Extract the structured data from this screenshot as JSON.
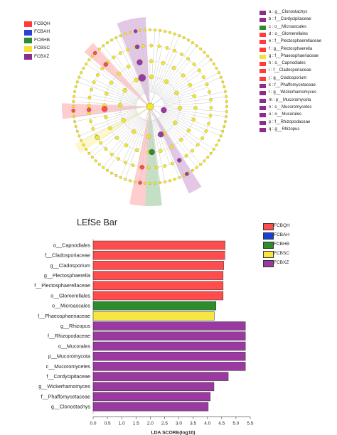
{
  "cladogram": {
    "groups": [
      {
        "name": "FCBQH",
        "color": "#ff3b3b"
      },
      {
        "name": "FCBAH",
        "color": "#2a3fd6"
      },
      {
        "name": "FCBHB",
        "color": "#2e8b2e"
      },
      {
        "name": "FCBSC",
        "color": "#f7e03a"
      },
      {
        "name": "FCBXZ",
        "color": "#8e2c8e"
      }
    ],
    "legend": [
      {
        "text": "a : g__Clonostachys",
        "color": "#8e2c8e"
      },
      {
        "text": "b : f__Cordycipitaceae",
        "color": "#8e2c8e"
      },
      {
        "text": "c : o__Microascales",
        "color": "#2e8b2e"
      },
      {
        "text": "d : o__Glomerellales",
        "color": "#ff3b3b"
      },
      {
        "text": "e : f__Plectosphaerellaceae",
        "color": "#ff3b3b"
      },
      {
        "text": "f : g__Plectosphaerella",
        "color": "#ff3b3b"
      },
      {
        "text": "g : f__Phaeosphaeriaceae",
        "color": "#f7e03a"
      },
      {
        "text": "h : o__Capnodiales",
        "color": "#ff3b3b"
      },
      {
        "text": "i : f__Cladosporiaceae",
        "color": "#ff3b3b"
      },
      {
        "text": "j : g__Cladosporium",
        "color": "#ff3b3b"
      },
      {
        "text": "k : f__Phaffomycetaceae",
        "color": "#8e2c8e"
      },
      {
        "text": "l : g__Wickerhamomyces",
        "color": "#8e2c8e"
      },
      {
        "text": "m : p__Mucoromycota",
        "color": "#8e2c8e"
      },
      {
        "text": "n : c__Mucoromycetes",
        "color": "#8e2c8e"
      },
      {
        "text": "o : o__Mucorales",
        "color": "#8e2c8e"
      },
      {
        "text": "p : f__Rhizopodaceae",
        "color": "#8e2c8e"
      },
      {
        "text": "q : g__Rhizopus",
        "color": "#8e2c8e"
      }
    ]
  },
  "chart_data": {
    "type": "bar",
    "orientation": "horizontal",
    "title": "LEfSe Bar",
    "xlabel": "LDA SCORE(log10)",
    "xlim": [
      0,
      5.5
    ],
    "xticks": [
      "0.0",
      "0.5",
      "1.0",
      "1.5",
      "2.0",
      "2.5",
      "3.0",
      "3.5",
      "4.0",
      "4.5",
      "5.0",
      "5.5"
    ],
    "legend": [
      {
        "name": "FCBQH",
        "color": "#ff4d4d"
      },
      {
        "name": "FCBAH",
        "color": "#1a3fd6"
      },
      {
        "name": "FCBHB",
        "color": "#2e8b2e"
      },
      {
        "name": "FCBSC",
        "color": "#f5e642"
      },
      {
        "name": "FCBXZ",
        "color": "#9a3aa0"
      }
    ],
    "bars": [
      {
        "label": "o__Capnodiales",
        "value": 4.62,
        "group": "FCBQH"
      },
      {
        "label": "f__Cladosporiaceae",
        "value": 4.61,
        "group": "FCBQH"
      },
      {
        "label": "g__Cladosporium",
        "value": 4.57,
        "group": "FCBQH"
      },
      {
        "label": "g__Plectosphaerella",
        "value": 4.55,
        "group": "FCBQH"
      },
      {
        "label": "f__Plectosphaerellaceae",
        "value": 4.55,
        "group": "FCBQH"
      },
      {
        "label": "o__Glomerellales",
        "value": 4.55,
        "group": "FCBQH"
      },
      {
        "label": "o__Microascales",
        "value": 4.3,
        "group": "FCBHB"
      },
      {
        "label": "f__Phaeosphaeriaceae",
        "value": 4.24,
        "group": "FCBSC"
      },
      {
        "label": "g__Rhizopus",
        "value": 5.33,
        "group": "FCBXZ"
      },
      {
        "label": "f__Rhizopodaceae",
        "value": 5.33,
        "group": "FCBXZ"
      },
      {
        "label": "o__Mucorales",
        "value": 5.33,
        "group": "FCBXZ"
      },
      {
        "label": "p__Mucoromycota",
        "value": 5.33,
        "group": "FCBXZ"
      },
      {
        "label": "c__Mucoromycetes",
        "value": 5.33,
        "group": "FCBXZ"
      },
      {
        "label": "f__Cordycipitaceae",
        "value": 4.73,
        "group": "FCBXZ"
      },
      {
        "label": "g__Wickerhamomyces",
        "value": 4.23,
        "group": "FCBXZ"
      },
      {
        "label": "f__Phaffomycetaceae",
        "value": 4.1,
        "group": "FCBXZ"
      },
      {
        "label": "g__Clonostachys",
        "value": 4.03,
        "group": "FCBXZ"
      }
    ]
  }
}
